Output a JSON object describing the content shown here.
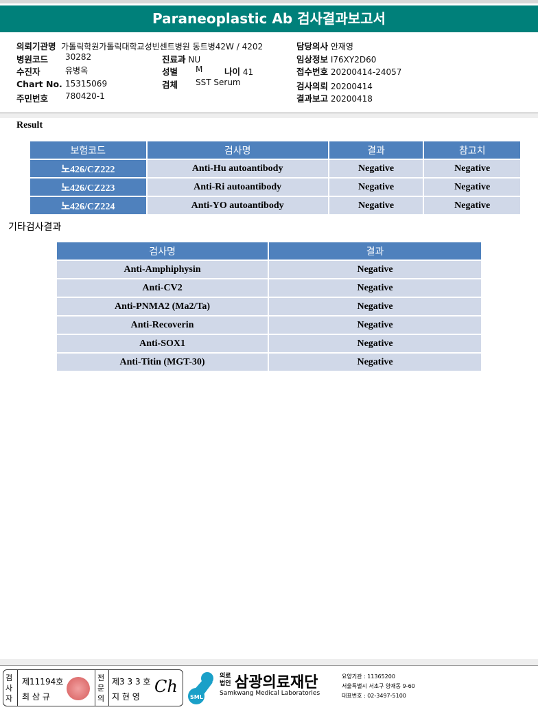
{
  "title": "Paraneoplastic Ab 검사결과보고서",
  "info": {
    "institution_label": "의뢰기관명",
    "institution": "가톨릭학원가톨릭대학교성빈센트병원",
    "ward": "동트병42W / 4202",
    "doctor_label": "담당의사",
    "doctor": "안재영",
    "hospcode_label": "병원코드",
    "hospcode": "30282",
    "dept_label": "진료과",
    "dept": "NU",
    "clinical_label": "임상정보",
    "clinical": "I76XY2D60",
    "patient_label": "수진자",
    "patient": "유병옥",
    "sex_label": "성별",
    "sex": "M",
    "age_label": "나이",
    "age": "41",
    "receipt_label": "접수번호",
    "receipt": "20200414-24057",
    "chart_label": "Chart No.",
    "chart": "15315069",
    "specimen_label": "검체",
    "specimen": "SST Serum",
    "request_label": "검사의뢰",
    "request": "20200414",
    "rrn_label": "주민번호",
    "rrn": "780420-1",
    "report_label": "결과보고",
    "report": "20200418"
  },
  "result_heading": "Result",
  "table1": {
    "headers": [
      "보험코드",
      "검사명",
      "결과",
      "참고치"
    ],
    "rows": [
      [
        "노426/CZ222",
        "Anti-Hu autoantibody",
        "Negative",
        "Negative"
      ],
      [
        "노426/CZ223",
        "Anti-Ri autoantibody",
        "Negative",
        "Negative"
      ],
      [
        "노426/CZ224",
        "Anti-YO autoantibody",
        "Negative",
        "Negative"
      ]
    ]
  },
  "other_heading": "기타검사결과",
  "table2": {
    "headers": [
      "검사명",
      "결과"
    ],
    "rows": [
      [
        "Anti-Amphiphysin",
        "Negative"
      ],
      [
        "Anti-CV2",
        "Negative"
      ],
      [
        "Anti-PNMA2 (Ma2/Ta)",
        "Negative"
      ],
      [
        "Anti-Recoverin",
        "Negative"
      ],
      [
        "Anti-SOX1",
        "Negative"
      ],
      [
        "Anti-Titin (MGT-30)",
        "Negative"
      ]
    ]
  },
  "footer": {
    "examiner_label": "검사자",
    "examiner_no": "제11194호",
    "examiner_name": "최 삼 규",
    "specialist_label": "전문의",
    "specialist_no": "제3 3 3 호",
    "specialist_name": "지 현 영",
    "org_type": "의료법인",
    "org_name": "삼광의료재단",
    "org_en": "Samkwang Medical Laboratories",
    "logo_text": "SML",
    "code": "요양기관 : 11365200",
    "address": "서울특별시 서초구 양재동 9-60",
    "phone": "대표번호 : 02-3497-5100"
  },
  "colors": {
    "title_bar": "#00807a",
    "header_cell": "#4f81bd",
    "body_cell": "#d0d8e8"
  }
}
